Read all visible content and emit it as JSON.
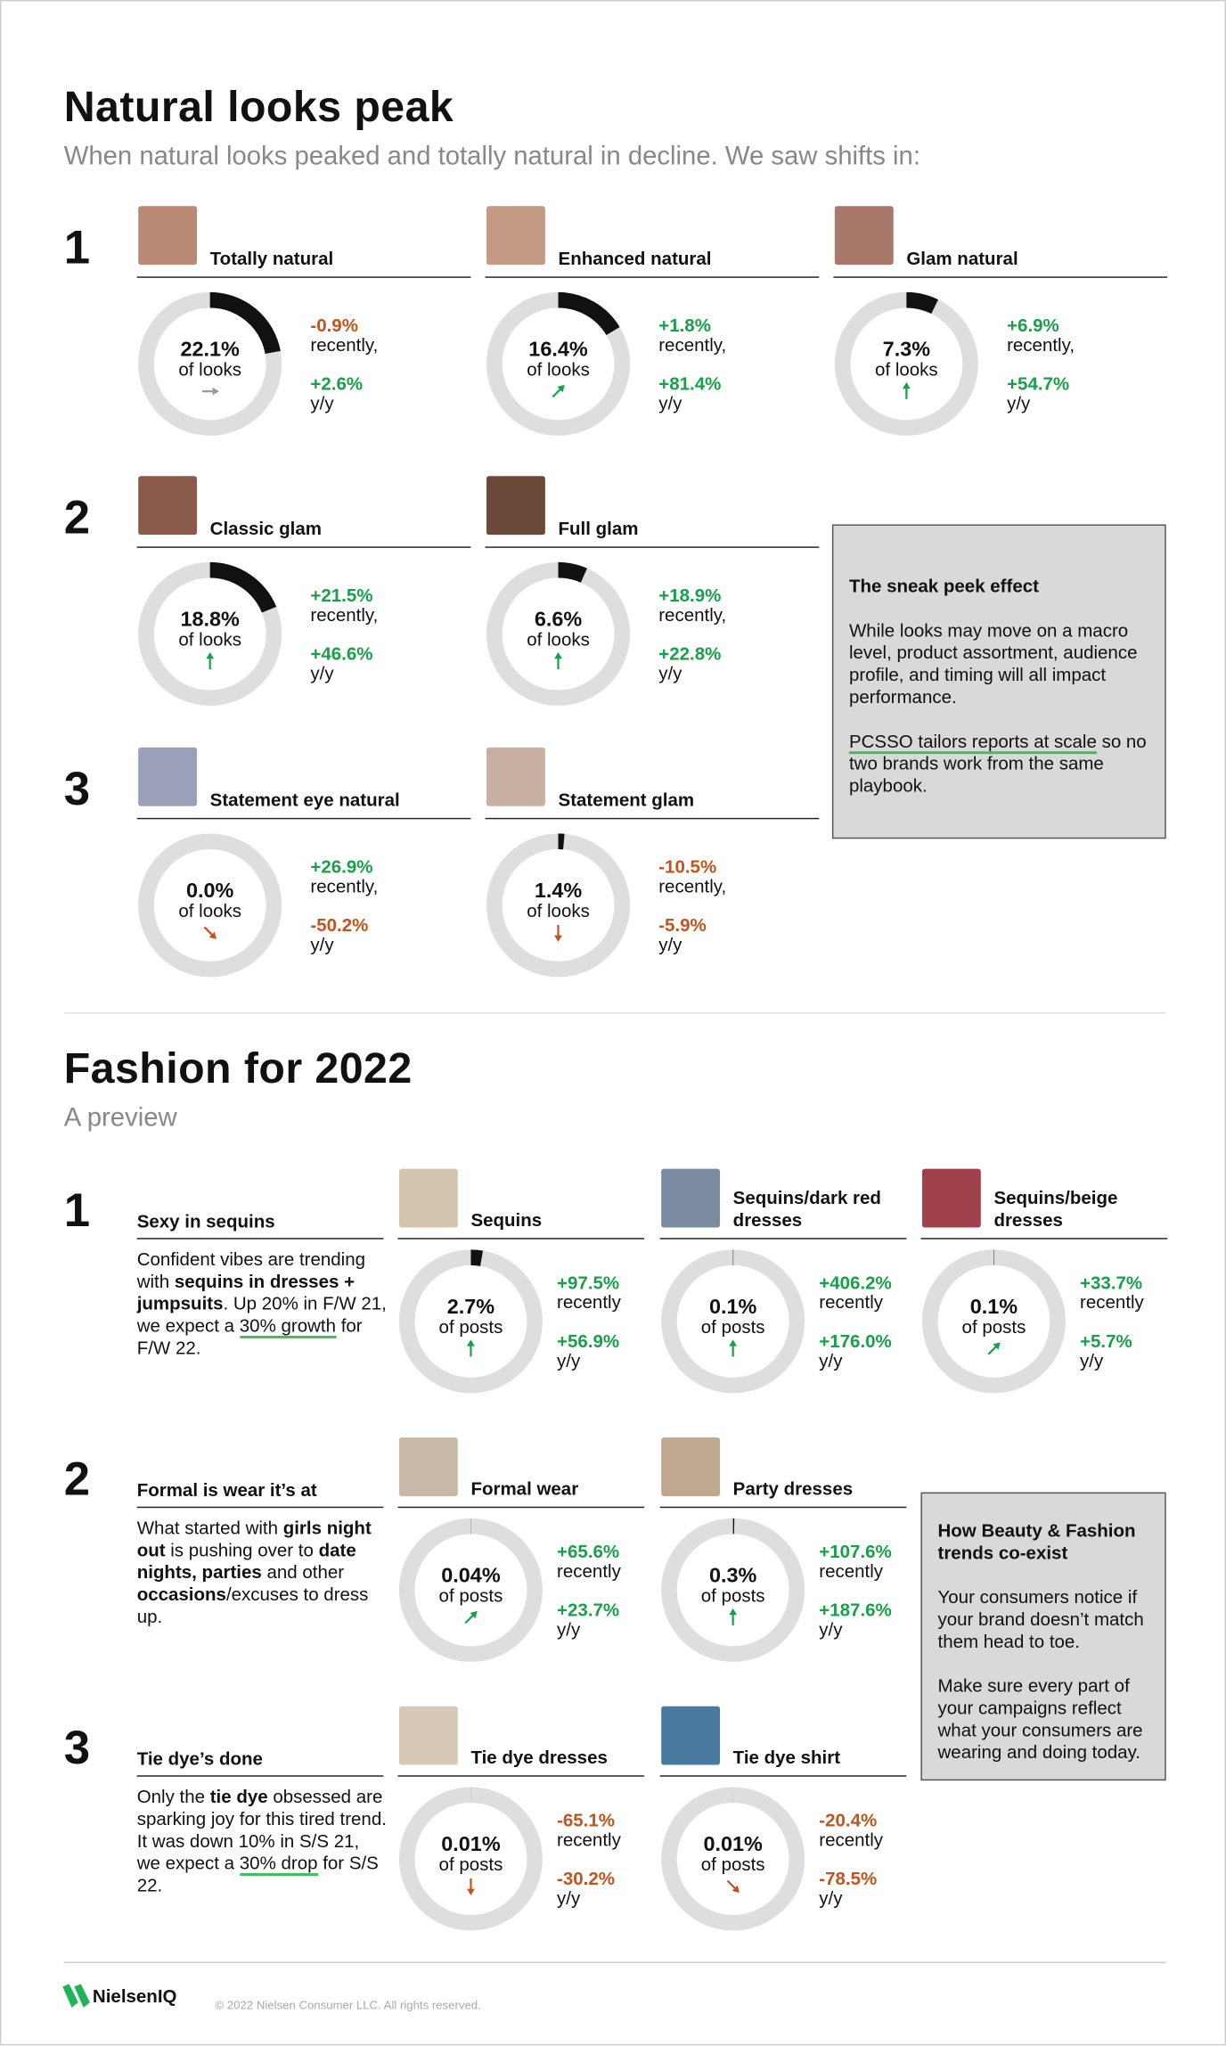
{
  "sections": [
    {
      "title": "Natural looks peak",
      "subtitle": "When natural looks peaked and totally natural in decline. We saw shifts in:",
      "groups": [
        {
          "number": "1",
          "items": [
            {
              "label": "Totally natural",
              "share": {
                "value": 22.1,
                "label": "22.1%"
              },
              "unit": "of looks",
              "arrow": "flat",
              "recent": "-0.9%",
              "recent_label": "recently,",
              "yoy": "+2.6%",
              "yoy_label": "y/y"
            },
            {
              "label": "Enhanced natural",
              "share": {
                "value": 16.4,
                "label": "16.4%"
              },
              "unit": "of looks",
              "arrow": "diag-up",
              "recent": "+1.8%",
              "recent_label": "recently,",
              "yoy": "+81.4%",
              "yoy_label": "y/y"
            },
            {
              "label": "Glam natural",
              "share": {
                "value": 7.3,
                "label": "7.3%"
              },
              "unit": "of looks",
              "arrow": "up",
              "recent": "+6.9%",
              "recent_label": "recently,",
              "yoy": "+54.7%",
              "yoy_label": "y/y"
            }
          ]
        },
        {
          "number": "2",
          "items": [
            {
              "label": "Classic glam",
              "share": {
                "value": 18.8,
                "label": "18.8%"
              },
              "unit": "of looks",
              "arrow": "up",
              "recent": "+21.5%",
              "recent_label": "recently,",
              "yoy": "+46.6%",
              "yoy_label": "y/y"
            },
            {
              "label": "Full glam",
              "share": {
                "value": 6.6,
                "label": "6.6%"
              },
              "unit": "of looks",
              "arrow": "up",
              "recent": "+18.9%",
              "recent_label": "recently,",
              "yoy": "+22.8%",
              "yoy_label": "y/y"
            }
          ]
        },
        {
          "number": "3",
          "items": [
            {
              "label": "Statement eye natural",
              "share": {
                "value": 0.0,
                "label": "0.0%"
              },
              "unit": "of looks",
              "arrow": "diag-down",
              "recent": "+26.9%",
              "recent_label": "recently,",
              "yoy": "-50.2%",
              "yoy_label": "y/y"
            },
            {
              "label": "Statement glam",
              "share": {
                "value": 1.4,
                "label": "1.4%"
              },
              "unit": "of looks",
              "arrow": "down",
              "recent": "-10.5%",
              "recent_label": "recently,",
              "yoy": "-5.9%",
              "yoy_label": "y/y"
            }
          ]
        }
      ],
      "sidebar": {
        "title": "The sneak peek effect",
        "paragraphs": [
          [
            {
              "text": "While looks may move on a macro level, product assortment, audience profile, and timing will all impact performance."
            }
          ],
          [
            {
              "text": "PCSSO tailors reports at scale",
              "underline": true
            },
            {
              "text": " so no two brands work from the same playbook."
            }
          ]
        ]
      }
    },
    {
      "title": "Fashion for 2022",
      "subtitle": "A preview",
      "groups": [
        {
          "number": "1",
          "topic": "Sexy in sequins",
          "description": [
            {
              "text": "Confident vibes are trending with "
            },
            {
              "text": "sequins in dresses + jumpsuits",
              "bold": true
            },
            {
              "text": ". Up 20% in F/W 21, we expect a "
            },
            {
              "text": "30% growth",
              "underline": true
            },
            {
              "text": " for F/W 22."
            }
          ],
          "items": [
            {
              "label": "Sequins",
              "share": {
                "value": 2.7,
                "label": "2.7%"
              },
              "unit": "of posts",
              "arrow": "up",
              "recent": "+97.5%",
              "recent_label": "recently",
              "yoy": "+56.9%",
              "yoy_label": "y/y"
            },
            {
              "label": "Sequins/dark red dresses",
              "share": {
                "value": 0.1,
                "label": "0.1%"
              },
              "unit": "of posts",
              "arrow": "up",
              "recent": "+406.2%",
              "recent_label": "recently",
              "yoy": "+176.0%",
              "yoy_label": "y/y"
            },
            {
              "label": "Sequins/beige dresses",
              "share": {
                "value": 0.1,
                "label": "0.1%"
              },
              "unit": "of posts",
              "arrow": "diag-up",
              "recent": "+33.7%",
              "recent_label": "recently",
              "yoy": "+5.7%",
              "yoy_label": "y/y"
            }
          ]
        },
        {
          "number": "2",
          "topic": "Formal is wear it’s at",
          "description": [
            {
              "text": "What started with "
            },
            {
              "text": "girls night out",
              "bold": true
            },
            {
              "text": " is pushing over to "
            },
            {
              "text": "date nights, parties",
              "bold": true
            },
            {
              "text": " and other "
            },
            {
              "text": "occasions",
              "bold": true
            },
            {
              "text": "/excuses to dress up."
            }
          ],
          "items": [
            {
              "label": "Formal wear",
              "share": {
                "value": 0.04,
                "label": "0.04%"
              },
              "unit": "of posts",
              "arrow": "diag-up",
              "recent": "+65.6%",
              "recent_label": "recently",
              "yoy": "+23.7%",
              "yoy_label": "y/y"
            },
            {
              "label": "Party dresses",
              "share": {
                "value": 0.3,
                "label": "0.3%"
              },
              "unit": "of posts",
              "arrow": "up",
              "recent": "+107.6%",
              "recent_label": "recently",
              "yoy": "+187.6%",
              "yoy_label": "y/y"
            }
          ]
        },
        {
          "number": "3",
          "topic": "Tie dye’s done",
          "description": [
            {
              "text": "Only the "
            },
            {
              "text": "tie dye",
              "bold": true
            },
            {
              "text": " obsessed are sparking joy for this tired trend.  It was down 10% in S/S 21, we expect a "
            },
            {
              "text": "30% drop",
              "underline": true
            },
            {
              "text": " for S/S 22."
            }
          ],
          "items": [
            {
              "label": "Tie dye dresses",
              "share": {
                "value": 0.01,
                "label": "0.01%"
              },
              "unit": "of posts",
              "arrow": "down",
              "recent": "-65.1%",
              "recent_label": "recently",
              "yoy": "-30.2%",
              "yoy_label": "y/y"
            },
            {
              "label": "Tie dye shirt",
              "share": {
                "value": 0.01,
                "label": "0.01%"
              },
              "unit": "of posts",
              "arrow": "diag-down",
              "recent": "-20.4%",
              "recent_label": "recently",
              "yoy": "-78.5%",
              "yoy_label": "y/y"
            }
          ]
        }
      ],
      "sidebar": {
        "title": "How Beauty & Fashion trends co-exist",
        "paragraphs": [
          [
            {
              "text": "Your consumers notice if your brand doesn’t match them head to toe."
            }
          ],
          [
            {
              "text": "Make sure every part of your campaigns reflect what your consumers are wearing and doing today."
            }
          ]
        ]
      }
    }
  ],
  "footer": {
    "brand": "NielsenIQ",
    "copyright": "© 2022 Nielsen Consumer LLC. All rights reserved."
  }
}
